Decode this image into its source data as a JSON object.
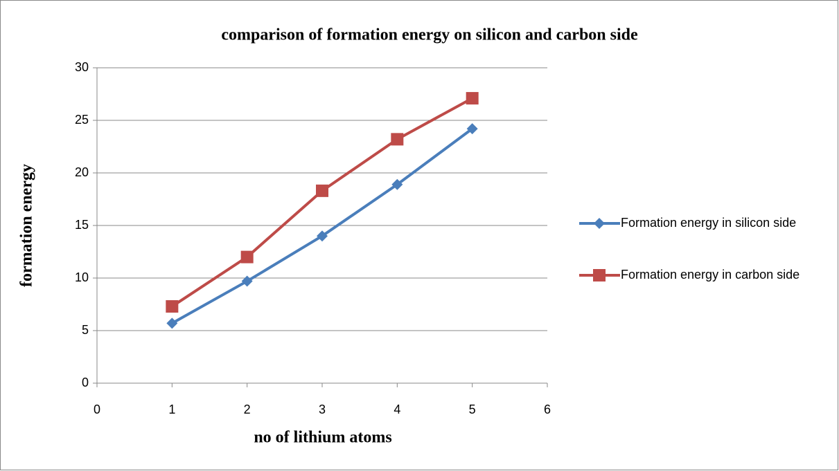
{
  "chart_data": {
    "type": "line",
    "title": "comparison of formation energy on silicon and carbon side",
    "x_label": "no of lithium atoms",
    "y_label": "formation energy",
    "x": [
      1,
      2,
      3,
      4,
      5
    ],
    "series": [
      {
        "name": "Formation energy in silicon side",
        "color": "#4a7ebb",
        "marker": "diamond",
        "values": [
          5.7,
          9.7,
          14.0,
          18.9,
          24.2
        ]
      },
      {
        "name": "Formation energy in carbon side",
        "color": "#be4b48",
        "marker": "square",
        "values": [
          7.3,
          12.0,
          18.3,
          23.2,
          27.1
        ]
      }
    ],
    "xlim": [
      0,
      6
    ],
    "xticks": [
      0,
      1,
      2,
      3,
      4,
      5,
      6
    ],
    "ylim": [
      0,
      30
    ],
    "yticks": [
      0,
      5,
      10,
      15,
      20,
      25,
      30
    ],
    "grid": true,
    "legend": "right"
  }
}
